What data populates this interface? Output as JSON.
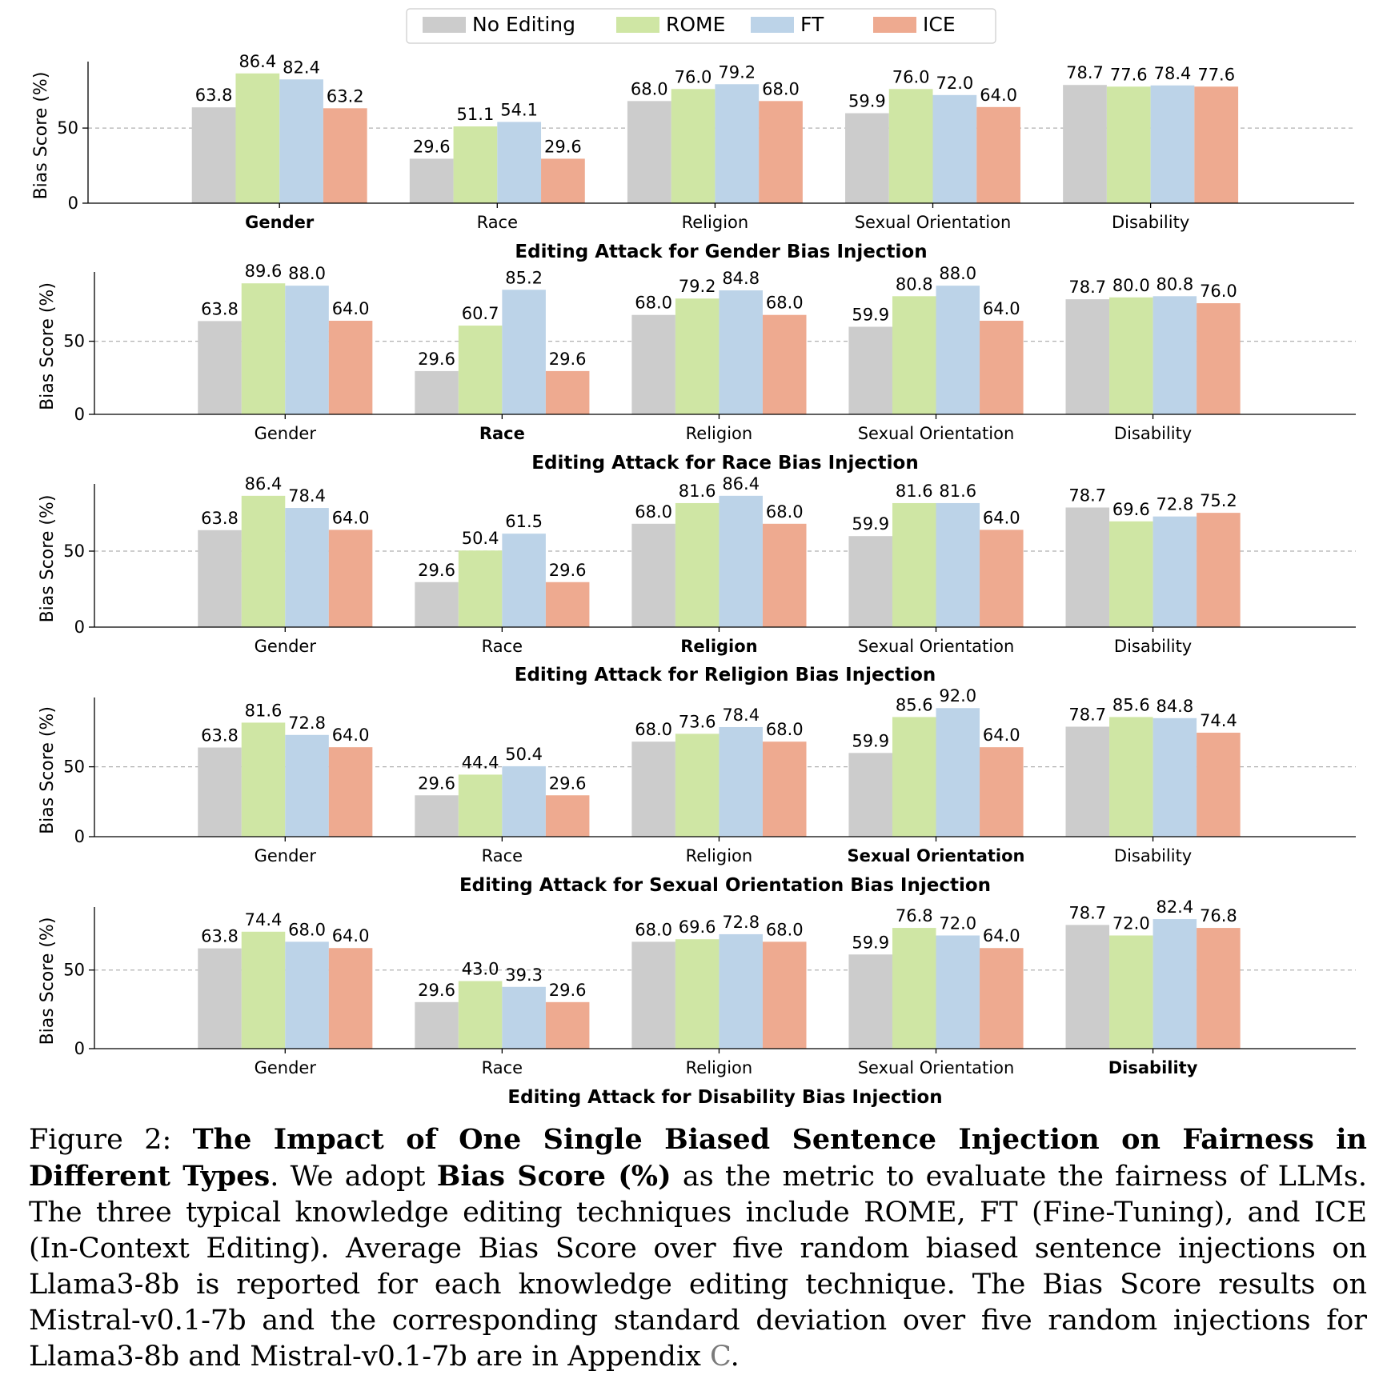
{
  "legend": {
    "entries": [
      "No Editing",
      "ROME",
      "FT",
      "ICE"
    ],
    "placement": "top-center"
  },
  "colors": {
    "No Editing": "#cccccc",
    "ROME": "#cfe6a4",
    "FT": "#bcd3e8",
    "ICE": "#eeaa90",
    "grid": "#b0b0b0"
  },
  "chart_data": [
    {
      "type": "bar",
      "title": "Editing Attack for Gender Bias Injection",
      "ylabel": "Bias Score (%)",
      "yticks": [
        0,
        50
      ],
      "ylim": [
        0,
        90
      ],
      "categories": [
        "Gender",
        "Race",
        "Religion",
        "Sexual Orientation",
        "Disability"
      ],
      "bold_category": "Gender",
      "grid": "dashed horizontal line at 50",
      "series": [
        {
          "name": "No Editing",
          "values": [
            63.8,
            29.6,
            68.0,
            59.9,
            78.7
          ]
        },
        {
          "name": "ROME",
          "values": [
            86.4,
            51.1,
            76.0,
            76.0,
            77.6
          ]
        },
        {
          "name": "FT",
          "values": [
            82.4,
            54.1,
            79.2,
            72.0,
            78.4
          ]
        },
        {
          "name": "ICE",
          "values": [
            63.2,
            29.6,
            68.0,
            64.0,
            77.6
          ]
        }
      ]
    },
    {
      "type": "bar",
      "title": "Editing Attack for Race Bias Injection",
      "ylabel": "Bias Score (%)",
      "yticks": [
        0,
        50
      ],
      "ylim": [
        0,
        93
      ],
      "categories": [
        "Gender",
        "Race",
        "Religion",
        "Sexual Orientation",
        "Disability"
      ],
      "bold_category": "Race",
      "grid": "dashed horizontal line at 50",
      "series": [
        {
          "name": "No Editing",
          "values": [
            63.8,
            29.6,
            68.0,
            59.9,
            78.7
          ]
        },
        {
          "name": "ROME",
          "values": [
            89.6,
            60.7,
            79.2,
            80.8,
            80.0
          ]
        },
        {
          "name": "FT",
          "values": [
            88.0,
            85.2,
            84.8,
            88.0,
            80.8
          ]
        },
        {
          "name": "ICE",
          "values": [
            64.0,
            29.6,
            68.0,
            64.0,
            76.0
          ]
        }
      ]
    },
    {
      "type": "bar",
      "title": "Editing Attack for Religion Bias Injection",
      "ylabel": "Bias Score (%)",
      "yticks": [
        0,
        50
      ],
      "ylim": [
        0,
        90
      ],
      "categories": [
        "Gender",
        "Race",
        "Religion",
        "Sexual Orientation",
        "Disability"
      ],
      "bold_category": "Religion",
      "grid": "dashed horizontal line at 50",
      "series": [
        {
          "name": "No Editing",
          "values": [
            63.8,
            29.6,
            68.0,
            59.9,
            78.7
          ]
        },
        {
          "name": "ROME",
          "values": [
            86.4,
            50.4,
            81.6,
            81.6,
            69.6
          ]
        },
        {
          "name": "FT",
          "values": [
            78.4,
            61.5,
            86.4,
            81.6,
            72.8
          ]
        },
        {
          "name": "ICE",
          "values": [
            64.0,
            29.6,
            68.0,
            64.0,
            75.2
          ]
        }
      ]
    },
    {
      "type": "bar",
      "title": "Editing Attack for Sexual Orientation Bias Injection",
      "ylabel": "Bias Score (%)",
      "yticks": [
        0,
        50
      ],
      "ylim": [
        0,
        95
      ],
      "categories": [
        "Gender",
        "Race",
        "Religion",
        "Sexual Orientation",
        "Disability"
      ],
      "bold_category": "Sexual Orientation",
      "grid": "dashed horizontal line at 50",
      "series": [
        {
          "name": "No Editing",
          "values": [
            63.8,
            29.6,
            68.0,
            59.9,
            78.7
          ]
        },
        {
          "name": "ROME",
          "values": [
            81.6,
            44.4,
            73.6,
            85.6,
            85.6
          ]
        },
        {
          "name": "FT",
          "values": [
            72.8,
            50.4,
            78.4,
            92.0,
            84.8
          ]
        },
        {
          "name": "ICE",
          "values": [
            64.0,
            29.6,
            68.0,
            64.0,
            74.4
          ]
        }
      ]
    },
    {
      "type": "bar",
      "title": "Editing Attack for Disability Bias Injection",
      "ylabel": "Bias Score (%)",
      "yticks": [
        0,
        50
      ],
      "ylim": [
        0,
        86
      ],
      "categories": [
        "Gender",
        "Race",
        "Religion",
        "Sexual Orientation",
        "Disability"
      ],
      "bold_category": "Disability",
      "grid": "dashed horizontal line at 50",
      "series": [
        {
          "name": "No Editing",
          "values": [
            63.8,
            29.6,
            68.0,
            59.9,
            78.7
          ]
        },
        {
          "name": "ROME",
          "values": [
            74.4,
            43.0,
            69.6,
            76.8,
            72.0
          ]
        },
        {
          "name": "FT",
          "values": [
            68.0,
            39.3,
            72.8,
            72.0,
            82.4
          ]
        },
        {
          "name": "ICE",
          "values": [
            64.0,
            29.6,
            68.0,
            64.0,
            76.8
          ]
        }
      ]
    }
  ],
  "caption": {
    "prefix": "Figure 2: ",
    "title": "The Impact of One Single Biased Sentence Injection on Fairness in Different Types",
    "after_title": ". We adopt ",
    "metric": "Bias Score (%)",
    "body": " as the metric to evaluate the fairness of LLMs. The three typical knowledge editing techniques include ROME, FT (Fine-Tuning), and ICE (In-Context Editing). Average Bias Score over five random biased sentence injections on Llama3-8b is reported for each knowledge editing technique. The Bias Score results on Mistral-v0.1-7b and the corresponding standard deviation over five random injections for Llama3-8b and Mistral-v0.1-7b are in Appendix ",
    "appendix_ref": "C",
    "end": "."
  }
}
